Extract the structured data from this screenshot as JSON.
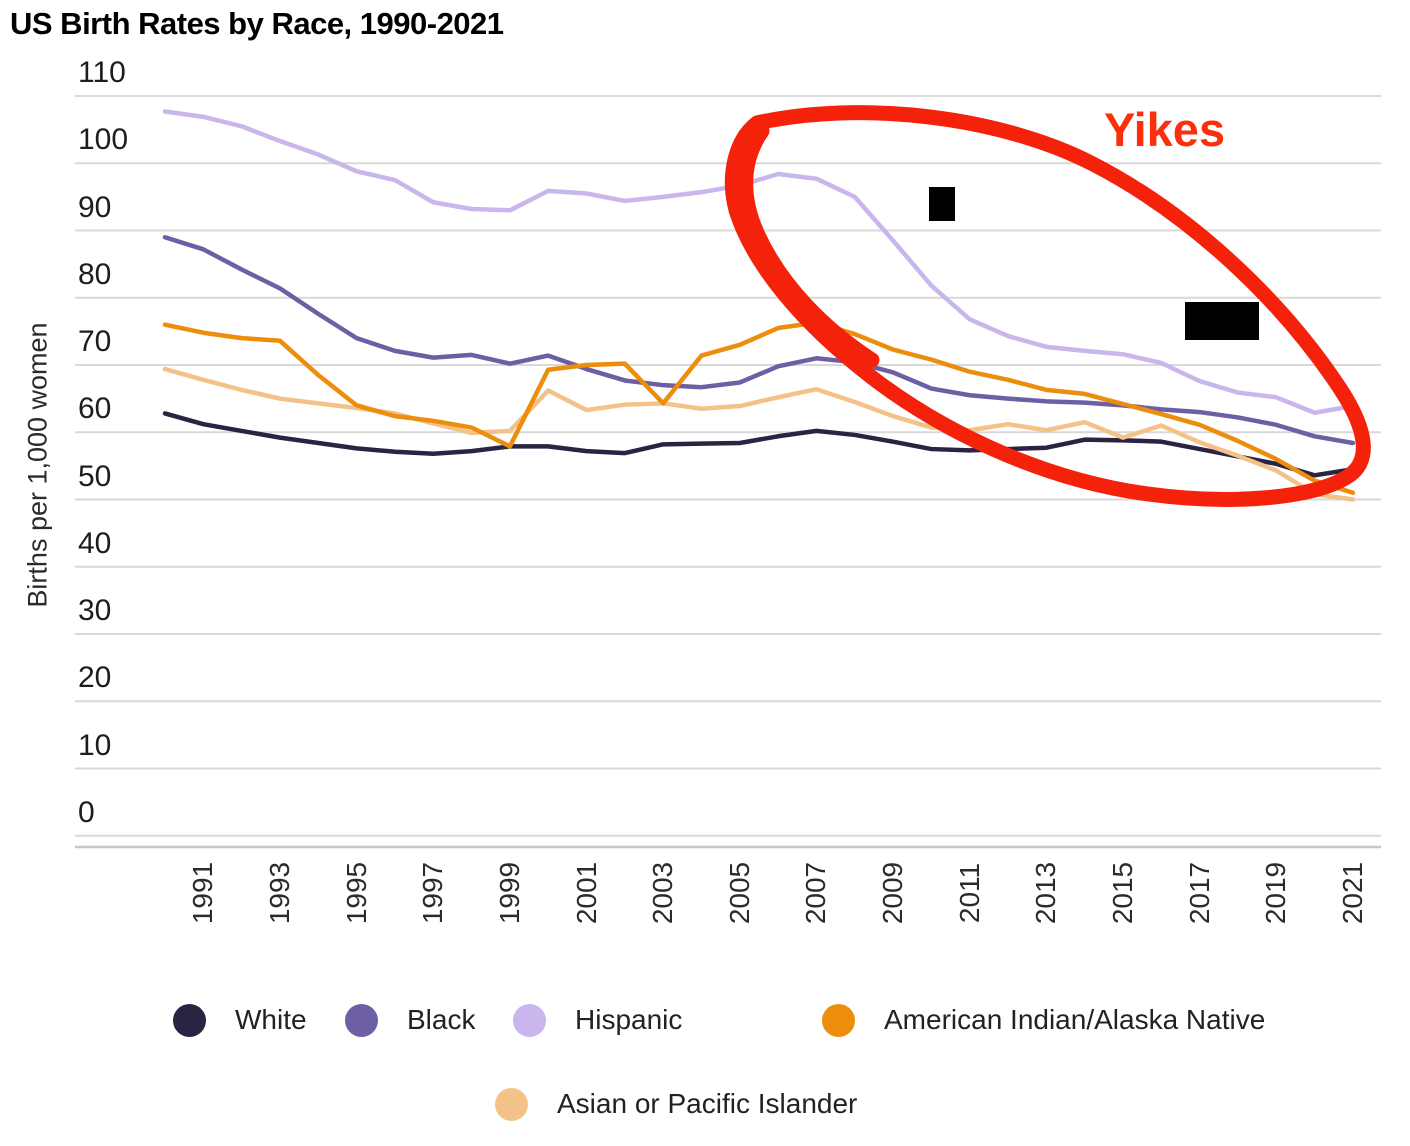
{
  "title": "US Birth Rates by Race, 1990-2021",
  "y_axis": {
    "title": "Births per 1,000 women",
    "ticks": [
      110,
      100,
      90,
      80,
      70,
      60,
      50,
      40,
      30,
      20,
      10,
      0
    ]
  },
  "x_axis": {
    "ticks": [
      1991,
      1993,
      1995,
      1997,
      1999,
      2001,
      2003,
      2005,
      2007,
      2009,
      2011,
      2013,
      2015,
      2017,
      2019,
      2021
    ]
  },
  "annotations": {
    "yikes_label": "Yikes",
    "yikes_color": "#fb2f0c",
    "circle_color": "#f5220b"
  },
  "colors": {
    "gridline": "#d9d9d9",
    "axis_line": "#c8c8c8"
  },
  "legend": {
    "row1": [
      "White",
      "Black",
      "Hispanic",
      "American Indian/Alaska Native"
    ],
    "row2": [
      "Asian or Pacific Islander"
    ]
  },
  "chart_data": {
    "type": "line",
    "title": "US Birth Rates by Race, 1990-2021",
    "xlabel": "",
    "ylabel": "Births per 1,000 women",
    "ylim": [
      0,
      110
    ],
    "xlim": [
      1990,
      2021
    ],
    "grid": "horizontal",
    "legend_position": "bottom",
    "x": [
      1990,
      1991,
      1992,
      1993,
      1994,
      1995,
      1996,
      1997,
      1998,
      1999,
      2000,
      2001,
      2002,
      2003,
      2004,
      2005,
      2006,
      2007,
      2008,
      2009,
      2010,
      2011,
      2012,
      2013,
      2014,
      2015,
      2016,
      2017,
      2018,
      2019,
      2020,
      2021
    ],
    "series": [
      {
        "name": "White",
        "color": "#2a2342",
        "values": [
          62.8,
          61.2,
          60.2,
          59.2,
          58.4,
          57.6,
          57.1,
          56.8,
          57.2,
          57.9,
          57.9,
          57.2,
          56.9,
          58.2,
          58.3,
          58.4,
          59.4,
          60.2,
          59.6,
          58.6,
          57.5,
          57.3,
          57.5,
          57.7,
          58.9,
          58.8,
          58.6,
          57.5,
          56.4,
          55.3,
          53.6,
          54.5
        ]
      },
      {
        "name": "Black",
        "color": "#6e5fa5",
        "values": [
          89.0,
          87.2,
          84.2,
          81.4,
          77.6,
          74.0,
          72.1,
          71.1,
          71.5,
          70.2,
          71.4,
          69.4,
          67.7,
          67.0,
          66.7,
          67.4,
          69.8,
          71.0,
          70.4,
          68.9,
          66.5,
          65.5,
          65.0,
          64.6,
          64.4,
          64.0,
          63.4,
          63.0,
          62.2,
          61.1,
          59.4,
          58.4
        ]
      },
      {
        "name": "Hispanic",
        "color": "#c8b6ec",
        "values": [
          107.7,
          106.9,
          105.5,
          103.3,
          101.3,
          98.8,
          97.5,
          94.2,
          93.2,
          93.0,
          95.9,
          95.5,
          94.4,
          95.0,
          95.7,
          96.7,
          98.4,
          97.7,
          95.0,
          88.5,
          81.8,
          76.8,
          74.3,
          72.7,
          72.1,
          71.6,
          70.3,
          67.6,
          65.9,
          65.2,
          62.9,
          63.9
        ]
      },
      {
        "name": "American Indian/Alaska Native",
        "color": "#ec8d0c",
        "values": [
          76.0,
          74.8,
          74.0,
          73.6,
          68.5,
          64.0,
          62.4,
          61.7,
          60.7,
          57.9,
          69.3,
          70.0,
          70.2,
          64.3,
          71.4,
          73.0,
          75.5,
          76.3,
          74.6,
          72.3,
          70.8,
          69.0,
          67.8,
          66.3,
          65.7,
          64.2,
          62.7,
          61.1,
          58.7,
          56.0,
          52.8,
          51.0
        ]
      },
      {
        "name": "Asian or Pacific Islander",
        "color": "#f3c289",
        "values": [
          69.4,
          67.8,
          66.3,
          65.0,
          64.3,
          63.6,
          62.8,
          61.3,
          59.9,
          60.2,
          66.2,
          63.3,
          64.1,
          64.3,
          63.5,
          63.9,
          65.2,
          66.4,
          64.5,
          62.4,
          60.7,
          60.3,
          61.2,
          60.3,
          61.5,
          59.2,
          61.0,
          58.5,
          56.5,
          54.3,
          50.8,
          50.0
        ]
      }
    ]
  }
}
